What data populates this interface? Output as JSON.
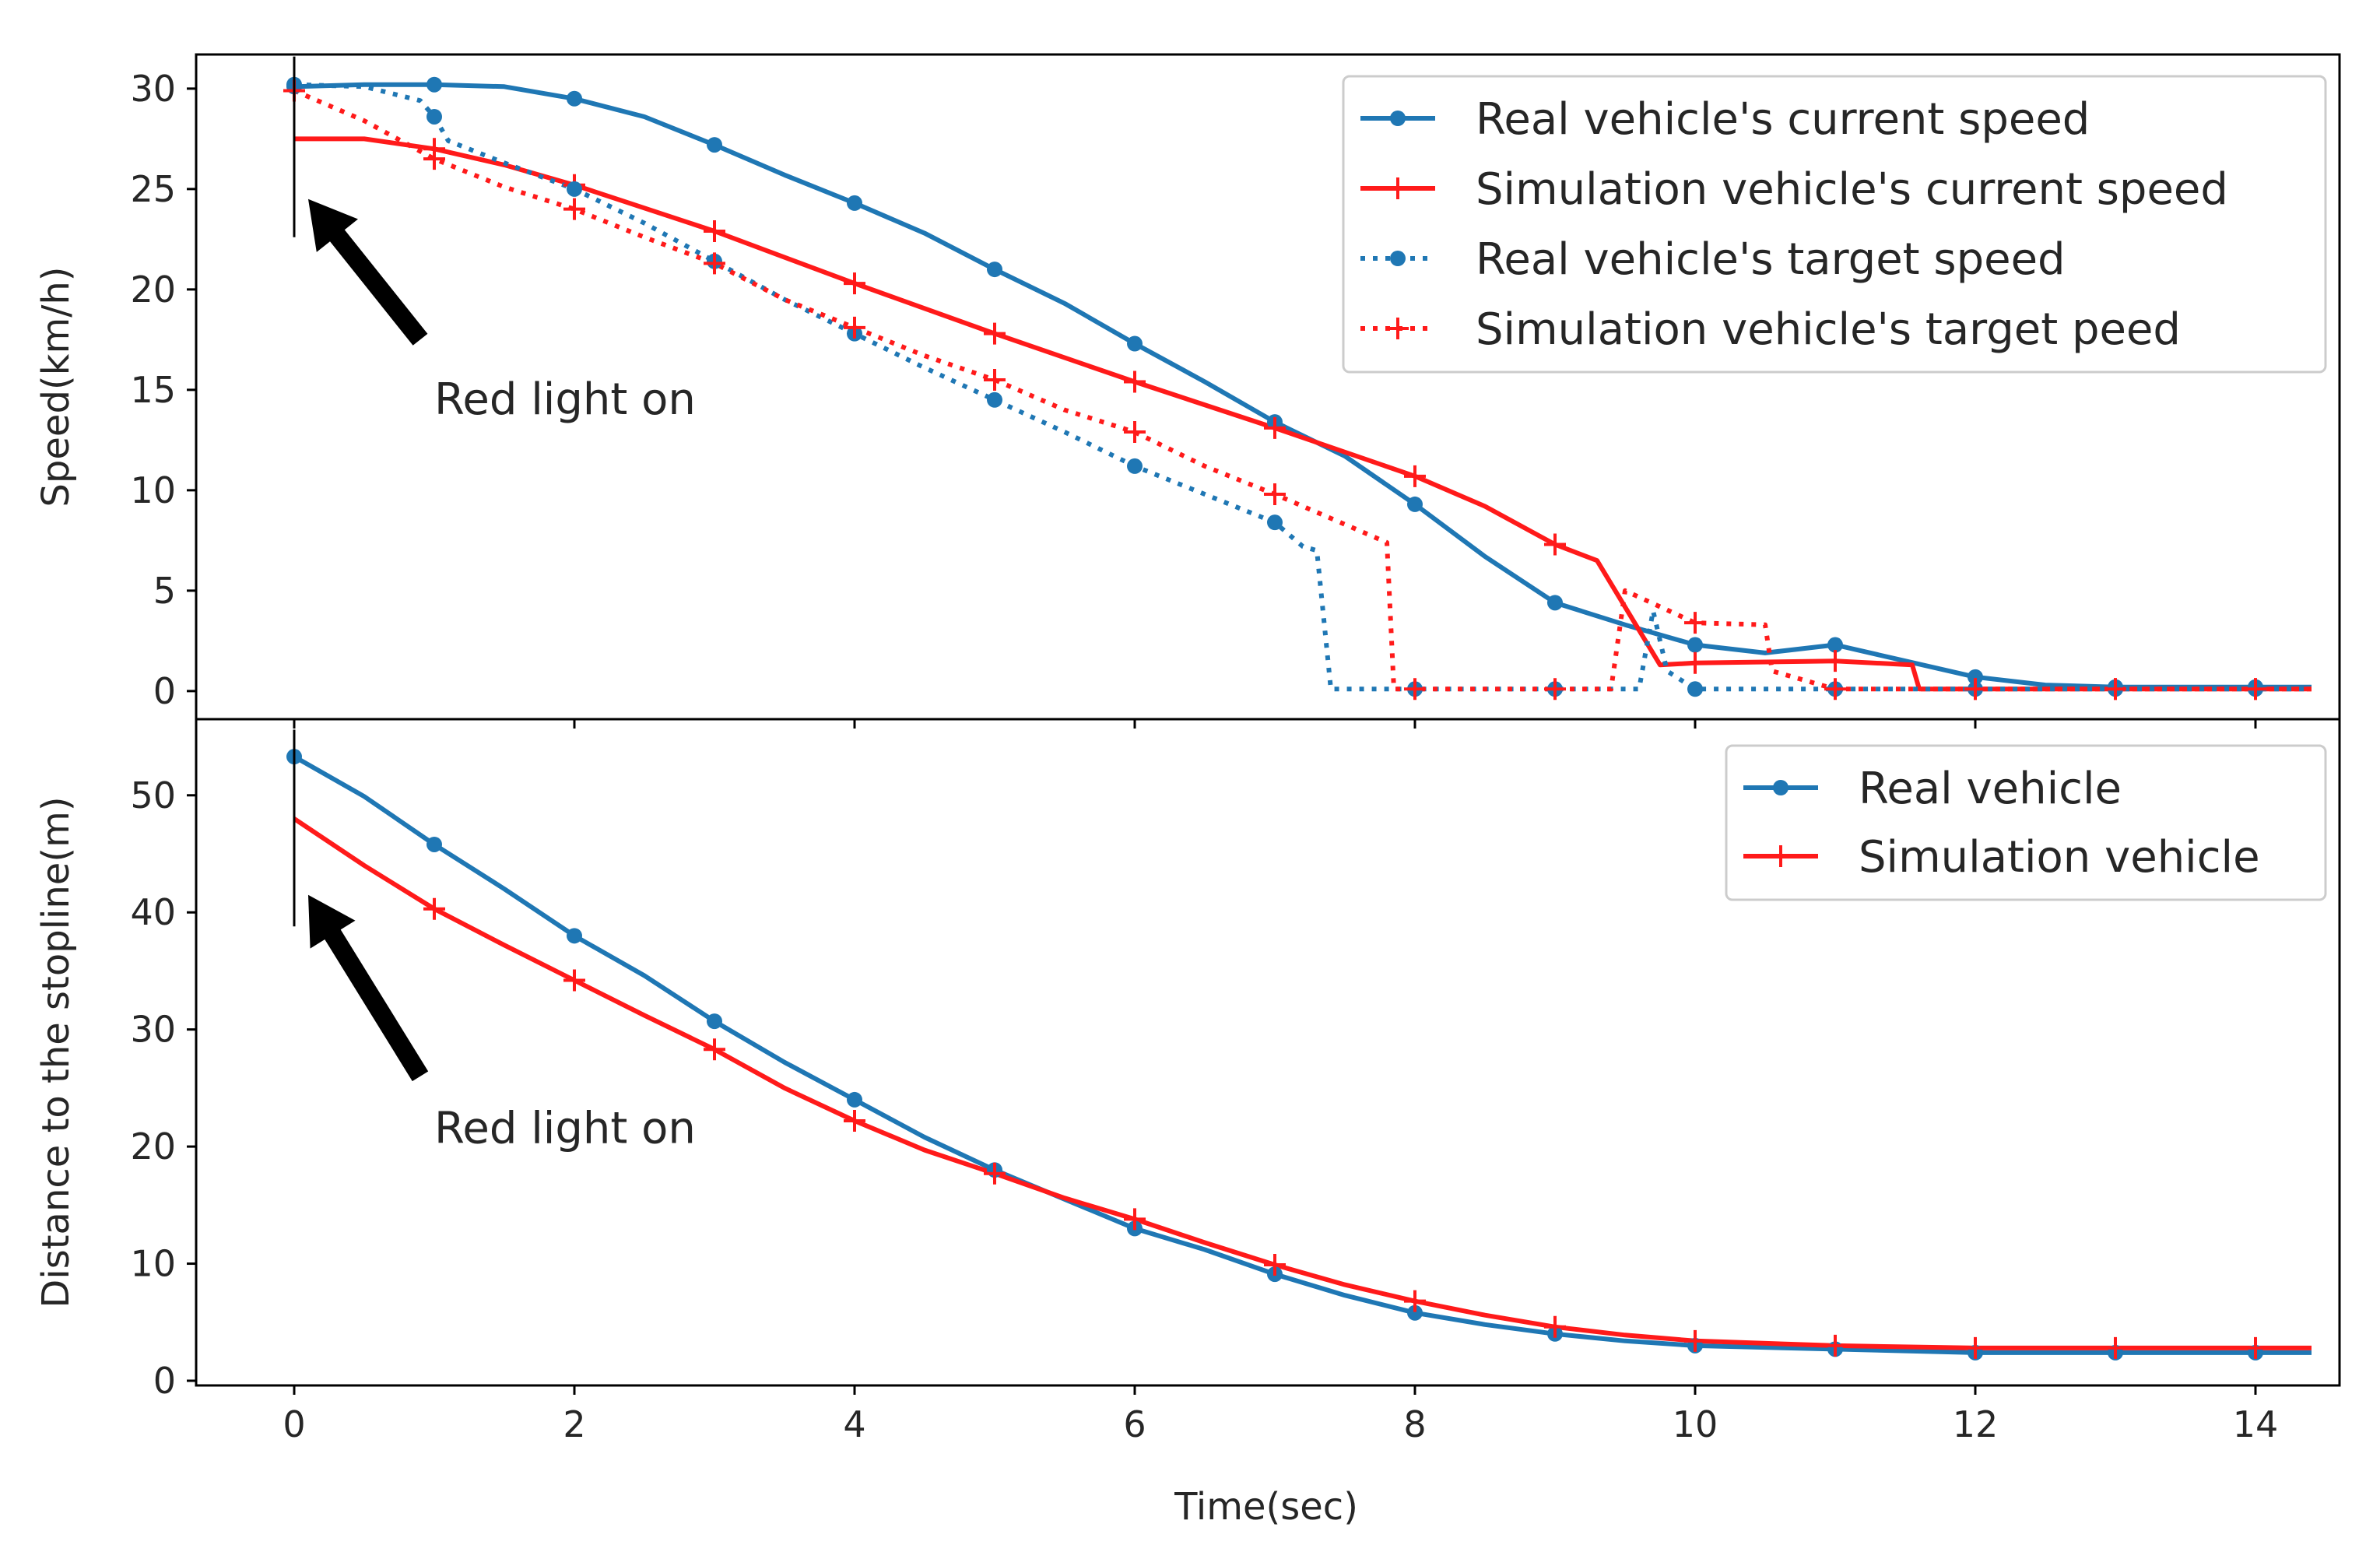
{
  "figure": {
    "xlabel": "Time(sec)"
  },
  "chart_data": [
    {
      "type": "line",
      "title": "",
      "xlabel": "Time(sec)",
      "ylabel": "Speed(km/h)",
      "xlim": [
        -0.7,
        14.6
      ],
      "ylim": [
        -1.4,
        31.7
      ],
      "xticks": [
        0,
        2,
        4,
        6,
        8,
        10,
        12,
        14
      ],
      "yticks": [
        0,
        5,
        10,
        15,
        20,
        25,
        30
      ],
      "xtick_labels": [
        "0",
        "2",
        "4",
        "6",
        "8",
        "10",
        "12",
        "14"
      ],
      "ytick_labels": [
        "0",
        "5",
        "10",
        "15",
        "20",
        "25",
        "30"
      ],
      "show_xticklabels": false,
      "legend_position": "top-right",
      "annotation": {
        "text": "Red light on",
        "arrow_tip": [
          0.1,
          24.5
        ],
        "arrow_tail": [
          0.9,
          17.5
        ],
        "text_at": [
          1.0,
          14.5
        ]
      },
      "vline": {
        "x": 0,
        "ymin": 22.6,
        "ymax": 31.6
      },
      "series": [
        {
          "name": "Real vehicle's current speed",
          "color": "#1f77b4",
          "style": "solid",
          "marker": "dot",
          "x": [
            0,
            0.5,
            1,
            1.5,
            2,
            2.5,
            3,
            3.5,
            4,
            4.5,
            5,
            5.5,
            6,
            6.5,
            7,
            7.5,
            8,
            8.5,
            9,
            9.5,
            10,
            10.5,
            11,
            11.5,
            12,
            12.5,
            13,
            13.5,
            14,
            14.4
          ],
          "y": [
            30.1,
            30.2,
            30.2,
            30.1,
            29.5,
            28.6,
            27.2,
            25.7,
            24.3,
            22.8,
            21.0,
            19.3,
            17.3,
            15.4,
            13.4,
            11.7,
            9.3,
            6.7,
            4.4,
            3.3,
            2.3,
            1.9,
            2.3,
            1.5,
            0.7,
            0.3,
            0.2,
            0.2,
            0.2,
            0.2
          ],
          "marker_x": [
            0,
            1,
            2,
            3,
            4,
            5,
            6,
            7,
            8,
            9,
            10,
            11,
            12,
            13,
            14
          ]
        },
        {
          "name": "Simulation vehicle's current speed",
          "color": "#ff1a1a",
          "style": "solid",
          "marker": "plus",
          "x": [
            0,
            0.5,
            1,
            1.5,
            2,
            3,
            4,
            5,
            6,
            7,
            8,
            8.5,
            9,
            9.3,
            9.75,
            10,
            11,
            11.55,
            11.6,
            12,
            13,
            14,
            14.4
          ],
          "y": [
            27.5,
            27.5,
            27.0,
            26.2,
            25.2,
            22.9,
            20.3,
            17.8,
            15.4,
            13.1,
            10.7,
            9.2,
            7.3,
            6.5,
            1.3,
            1.4,
            1.5,
            1.3,
            0.1,
            0.1,
            0.1,
            0.1,
            0.1
          ],
          "marker_x": [
            1,
            2,
            3,
            4,
            5,
            6,
            7,
            8,
            9,
            10,
            11,
            12,
            13,
            14
          ]
        },
        {
          "name": "Real vehicle's target speed",
          "color": "#1f77b4",
          "style": "dotted",
          "marker": "dot",
          "x": [
            0,
            0.5,
            0.9,
            1,
            1.1,
            1.5,
            2,
            2.5,
            3,
            3.5,
            4,
            4.5,
            5,
            5.5,
            6,
            6.5,
            7,
            7.2,
            7.3,
            7.4,
            8,
            9,
            9.6,
            9.7,
            9.8,
            10,
            11,
            12,
            13,
            14,
            14.4
          ],
          "y": [
            30.2,
            30.1,
            29.4,
            28.6,
            27.4,
            26.3,
            25.0,
            23.3,
            21.4,
            19.5,
            17.8,
            16.1,
            14.5,
            12.9,
            11.2,
            9.8,
            8.4,
            7.2,
            7.0,
            0.1,
            0.1,
            0.1,
            0.1,
            4.0,
            1.0,
            0.1,
            0.1,
            0.1,
            0.1,
            0.1,
            0.1
          ],
          "marker_x": [
            0,
            1,
            2,
            3,
            4,
            5,
            6,
            7,
            8,
            9,
            10,
            11,
            12,
            13,
            14
          ]
        },
        {
          "name": "Simulation vehicle's target peed",
          "color": "#ff1a1a",
          "style": "dotted",
          "marker": "plus",
          "x": [
            0,
            0.5,
            1,
            1.5,
            2,
            2.5,
            3,
            3.5,
            4,
            4.5,
            5,
            5.5,
            6,
            6.5,
            7,
            7.5,
            7.8,
            7.85,
            8,
            9,
            9.4,
            9.5,
            10,
            10.5,
            10.55,
            11,
            12,
            13,
            14,
            14.4
          ],
          "y": [
            29.9,
            28.4,
            26.5,
            25.1,
            24.0,
            22.6,
            21.3,
            19.5,
            18.1,
            16.7,
            15.5,
            14.0,
            12.9,
            11.2,
            9.8,
            8.3,
            7.4,
            0.1,
            0.1,
            0.1,
            0.1,
            5.0,
            3.4,
            3.3,
            1.0,
            0.1,
            0.1,
            0.1,
            0.1,
            0.1
          ],
          "marker_x": [
            0,
            1,
            2,
            3,
            4,
            5,
            6,
            7,
            8,
            9,
            10,
            11,
            12,
            13,
            14
          ]
        }
      ]
    },
    {
      "type": "line",
      "title": "",
      "xlabel": "Time(sec)",
      "ylabel": "Distance to the stopline(m)",
      "xlim": [
        -0.7,
        14.6
      ],
      "ylim": [
        -0.4,
        56.5
      ],
      "xticks": [
        0,
        2,
        4,
        6,
        8,
        10,
        12,
        14
      ],
      "yticks": [
        0,
        10,
        20,
        30,
        40,
        50
      ],
      "xtick_labels": [
        "0",
        "2",
        "4",
        "6",
        "8",
        "10",
        "12",
        "14"
      ],
      "ytick_labels": [
        "0",
        "10",
        "20",
        "30",
        "40",
        "50"
      ],
      "show_xticklabels": true,
      "legend_position": "top-right",
      "annotation": {
        "text": "Red light on",
        "arrow_tip": [
          0.1,
          41.5
        ],
        "arrow_tail": [
          0.9,
          26.0
        ],
        "text_at": [
          1.0,
          21.5
        ]
      },
      "vline": {
        "x": 0,
        "ymin": 38.8,
        "ymax": 55.6
      },
      "series": [
        {
          "name": "Real vehicle",
          "color": "#1f77b4",
          "style": "solid",
          "marker": "dot",
          "x": [
            0,
            0.5,
            1,
            1.5,
            2,
            2.5,
            3,
            3.5,
            4,
            4.5,
            5,
            5.5,
            6,
            6.5,
            7,
            7.5,
            8,
            8.5,
            9,
            9.5,
            10,
            11,
            12,
            13,
            14,
            14.4
          ],
          "y": [
            53.3,
            49.9,
            45.8,
            42.0,
            38.0,
            34.6,
            30.7,
            27.2,
            24.0,
            20.8,
            18.0,
            15.5,
            13.0,
            11.2,
            9.1,
            7.3,
            5.8,
            4.8,
            4.0,
            3.4,
            3.0,
            2.7,
            2.4,
            2.4,
            2.4,
            2.4
          ],
          "marker_x": [
            0,
            1,
            2,
            3,
            4,
            5,
            6,
            7,
            8,
            9,
            10,
            11,
            12,
            13,
            14
          ]
        },
        {
          "name": "Simulation vehicle",
          "color": "#ff1a1a",
          "style": "solid",
          "marker": "plus",
          "x": [
            0,
            0.5,
            1,
            1.5,
            2,
            2.5,
            3,
            3.5,
            4,
            4.5,
            5,
            5.5,
            6,
            6.5,
            7,
            7.5,
            8,
            8.5,
            9,
            9.5,
            10,
            11,
            12,
            13,
            14,
            14.4
          ],
          "y": [
            48.0,
            44.0,
            40.3,
            37.2,
            34.2,
            31.2,
            28.3,
            25.0,
            22.2,
            19.7,
            17.7,
            15.6,
            13.8,
            11.8,
            9.9,
            8.2,
            6.8,
            5.6,
            4.6,
            3.9,
            3.4,
            3.0,
            2.8,
            2.8,
            2.8,
            2.8
          ],
          "marker_x": [
            1,
            2,
            3,
            4,
            5,
            6,
            7,
            8,
            9,
            10,
            11,
            12,
            13,
            14
          ]
        }
      ]
    }
  ]
}
